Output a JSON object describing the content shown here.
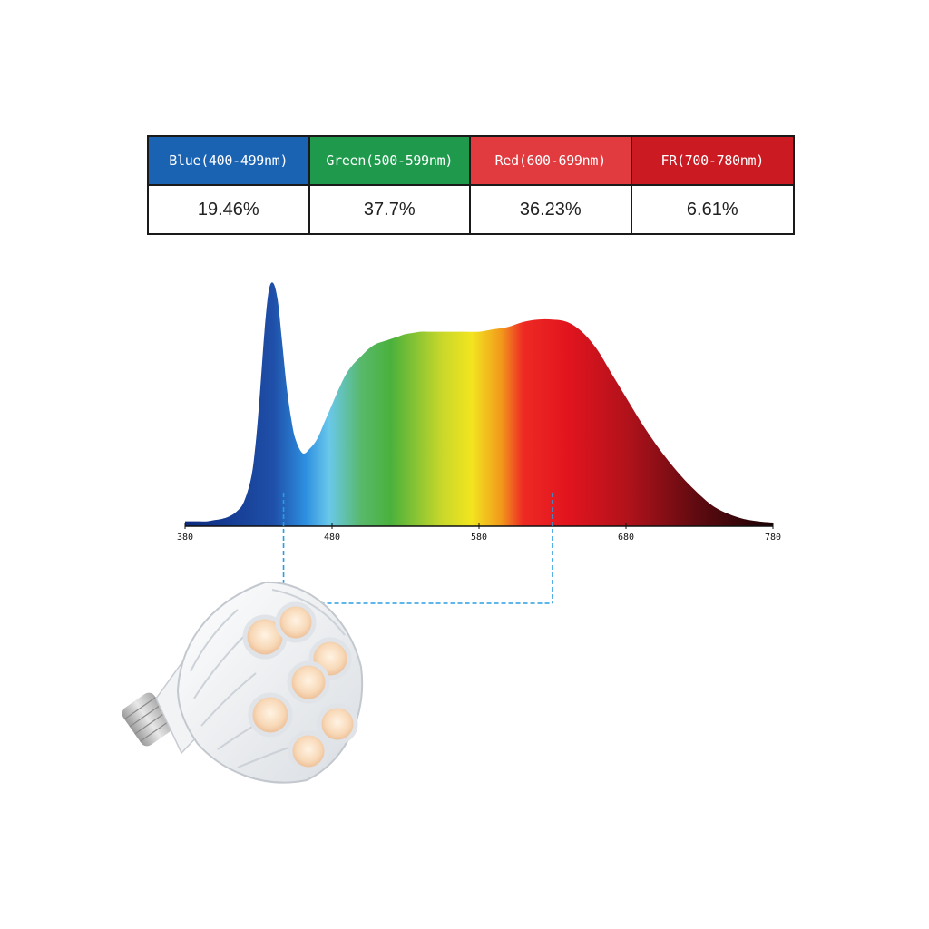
{
  "table": {
    "headers": [
      {
        "label": "Blue(400-499nm)",
        "color": "#1a63b3"
      },
      {
        "label": "Green(500-599nm)",
        "color": "#1f9a4d"
      },
      {
        "label": "Red(600-699nm)",
        "color": "#e13a3f"
      },
      {
        "label": "FR(700-780nm)",
        "color": "#cc1a22"
      }
    ],
    "values": [
      "19.46%",
      "37.7%",
      "36.23%",
      "6.61%"
    ]
  },
  "chart_data": {
    "type": "area",
    "title": "",
    "xlabel": "",
    "ylabel": "",
    "xlim": [
      380,
      780
    ],
    "ylim": [
      0,
      1
    ],
    "grid": false,
    "x_ticks": [
      "380",
      "480",
      "580",
      "680",
      "780"
    ],
    "x_tick_values": [
      380,
      480,
      580,
      680,
      780
    ],
    "x": [
      380,
      385,
      390,
      395,
      400,
      405,
      410,
      415,
      420,
      425,
      428,
      431,
      434,
      437,
      440,
      443,
      446,
      449,
      452,
      455,
      460,
      465,
      470,
      475,
      480,
      485,
      490,
      495,
      500,
      505,
      510,
      515,
      520,
      525,
      530,
      535,
      540,
      545,
      550,
      560,
      570,
      580,
      590,
      600,
      610,
      620,
      630,
      640,
      650,
      660,
      670,
      680,
      690,
      700,
      710,
      720,
      730,
      740,
      750,
      760,
      770,
      780
    ],
    "y": [
      0.02,
      0.02,
      0.02,
      0.02,
      0.025,
      0.03,
      0.04,
      0.06,
      0.1,
      0.2,
      0.34,
      0.55,
      0.8,
      0.97,
      1.0,
      0.93,
      0.76,
      0.58,
      0.45,
      0.36,
      0.3,
      0.32,
      0.36,
      0.43,
      0.5,
      0.57,
      0.63,
      0.67,
      0.7,
      0.73,
      0.75,
      0.76,
      0.77,
      0.78,
      0.79,
      0.795,
      0.8,
      0.8,
      0.8,
      0.8,
      0.8,
      0.8,
      0.81,
      0.82,
      0.84,
      0.85,
      0.85,
      0.84,
      0.8,
      0.73,
      0.63,
      0.53,
      0.43,
      0.34,
      0.26,
      0.19,
      0.13,
      0.08,
      0.05,
      0.03,
      0.02,
      0.015
    ],
    "markers": [
      {
        "wavelength": 447
      },
      {
        "wavelength": 630
      }
    ],
    "gradient_stops": [
      {
        "nm": 380,
        "color": "#0c2a7e"
      },
      {
        "nm": 440,
        "color": "#1f4fa8"
      },
      {
        "nm": 462,
        "color": "#2d8fe0"
      },
      {
        "nm": 478,
        "color": "#6ac8ea"
      },
      {
        "nm": 500,
        "color": "#58b86a"
      },
      {
        "nm": 520,
        "color": "#4ab13c"
      },
      {
        "nm": 555,
        "color": "#c9d82a"
      },
      {
        "nm": 575,
        "color": "#f2e51f"
      },
      {
        "nm": 595,
        "color": "#f29a1c"
      },
      {
        "nm": 610,
        "color": "#ee2a23"
      },
      {
        "nm": 640,
        "color": "#e2141e"
      },
      {
        "nm": 680,
        "color": "#b3121b"
      },
      {
        "nm": 730,
        "color": "#5c0a10"
      },
      {
        "nm": 780,
        "color": "#1a0204"
      }
    ],
    "marker_color": "#2a9de0"
  }
}
